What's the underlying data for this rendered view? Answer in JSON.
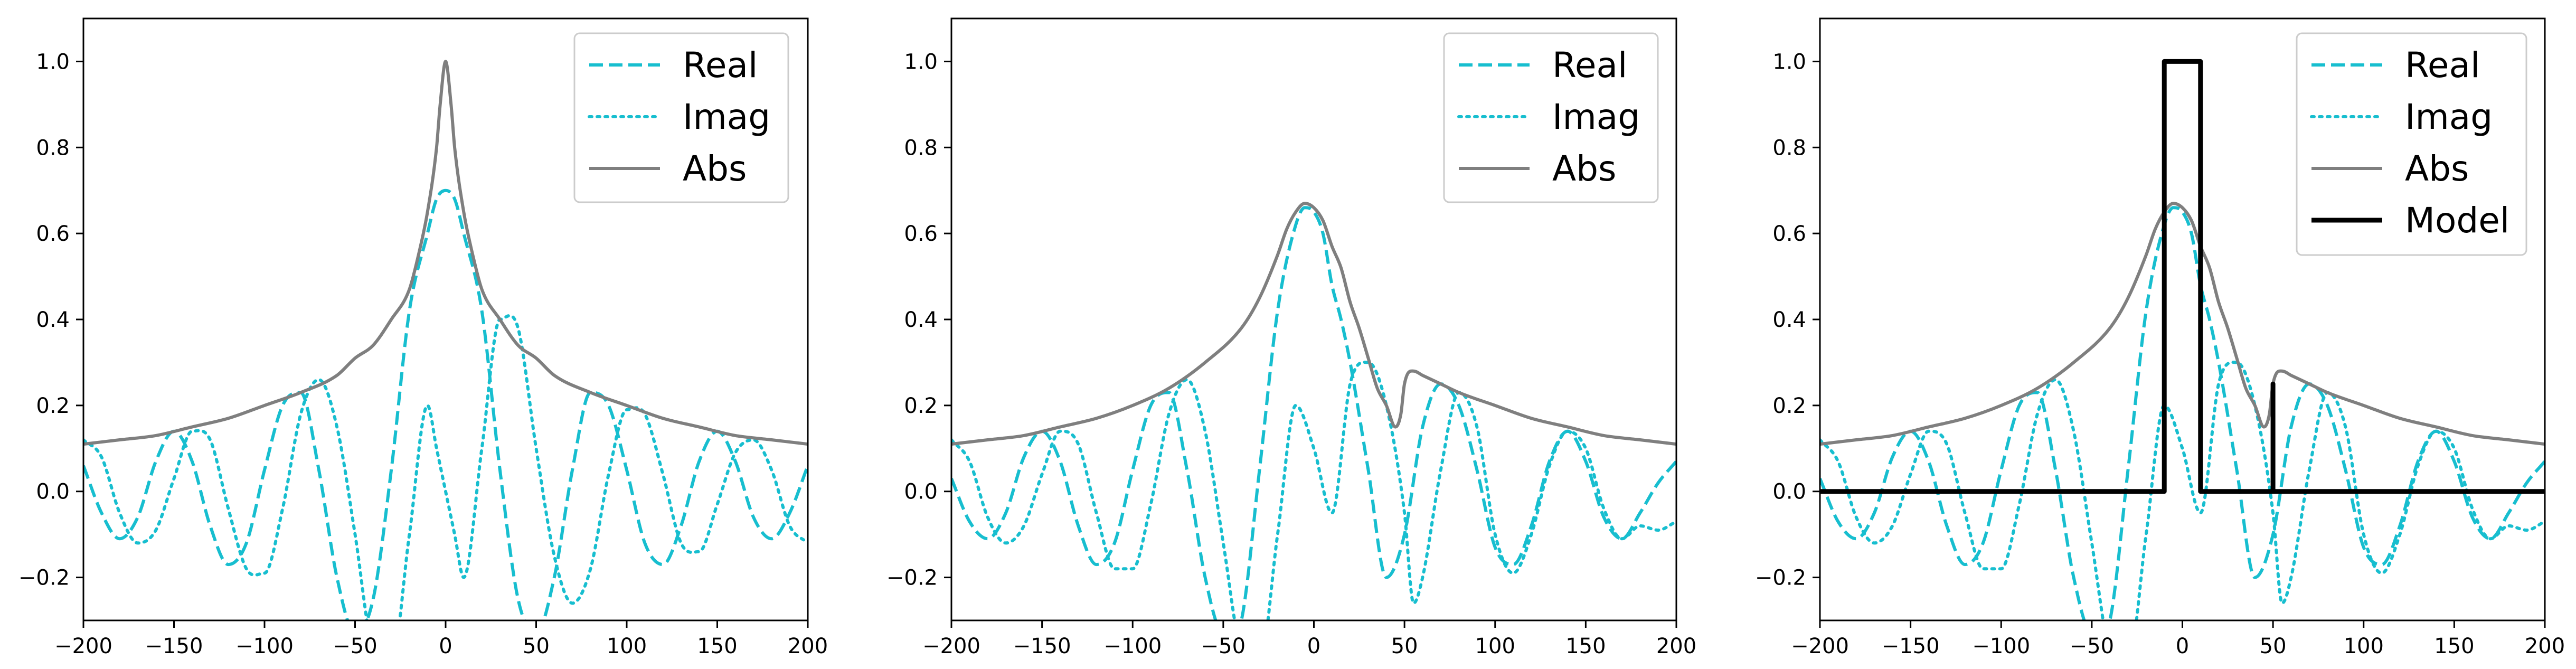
{
  "colors": {
    "real": "#17becf",
    "imag": "#17becf",
    "abs": "#7f7f7f",
    "model": "#000000"
  },
  "chart_data": [
    {
      "type": "line",
      "title": "",
      "xlabel": "",
      "ylabel": "",
      "xlim": [
        -200,
        200
      ],
      "ylim": [
        -0.3,
        1.1
      ],
      "xticks": [
        -200,
        -150,
        -100,
        -50,
        0,
        50,
        100,
        150,
        200
      ],
      "xtick_labels": [
        "−200",
        "−150",
        "−100",
        "−50",
        "0",
        "50",
        "100",
        "150",
        "200"
      ],
      "yticks": [
        -0.2,
        0.0,
        0.2,
        0.4,
        0.6,
        0.8,
        1.0
      ],
      "ytick_labels": [
        "−0.2",
        "0.0",
        "0.2",
        "0.4",
        "0.6",
        "0.8",
        "1.0"
      ],
      "grid": false,
      "legend": "top-right",
      "series": [
        {
          "name": "Real",
          "style": "dashed",
          "x": [
            -200,
            -190,
            -180,
            -170,
            -160,
            -150,
            -140,
            -130,
            -120,
            -110,
            -100,
            -90,
            -80,
            -70,
            -60,
            -50,
            -40,
            -30,
            -20,
            -10,
            -5,
            0,
            5,
            10,
            20,
            30,
            40,
            50,
            60,
            70,
            80,
            90,
            100,
            110,
            120,
            130,
            140,
            150,
            160,
            170,
            180,
            190,
            200
          ],
          "y": [
            0.06,
            -0.05,
            -0.11,
            -0.06,
            0.07,
            0.14,
            0.07,
            -0.08,
            -0.17,
            -0.12,
            0.05,
            0.2,
            0.23,
            0.05,
            -0.2,
            -0.33,
            -0.25,
            0.05,
            0.42,
            0.6,
            0.68,
            0.7,
            0.68,
            0.6,
            0.42,
            0.05,
            -0.25,
            -0.33,
            -0.2,
            0.05,
            0.23,
            0.2,
            0.05,
            -0.12,
            -0.17,
            -0.08,
            0.07,
            0.14,
            0.07,
            -0.06,
            -0.11,
            -0.05,
            0.06
          ]
        },
        {
          "name": "Imag",
          "style": "dotted",
          "x": [
            -200,
            -190,
            -180,
            -170,
            -160,
            -150,
            -140,
            -130,
            -120,
            -110,
            -100,
            -90,
            -80,
            -70,
            -60,
            -50,
            -40,
            -30,
            -20,
            -10,
            -5,
            0,
            5,
            10,
            20,
            30,
            40,
            50,
            60,
            70,
            80,
            90,
            100,
            110,
            120,
            130,
            140,
            150,
            160,
            170,
            180,
            190,
            200
          ],
          "y": [
            0.12,
            0.08,
            -0.05,
            -0.12,
            -0.09,
            0.03,
            0.14,
            0.12,
            -0.04,
            -0.18,
            -0.19,
            -0.04,
            0.18,
            0.26,
            0.15,
            -0.1,
            -0.38,
            -0.4,
            -0.1,
            0.2,
            0.1,
            0.0,
            -0.1,
            -0.2,
            0.1,
            0.4,
            0.38,
            0.1,
            -0.15,
            -0.26,
            -0.18,
            0.04,
            0.19,
            0.18,
            0.04,
            -0.12,
            -0.14,
            -0.03,
            0.09,
            0.12,
            0.05,
            -0.08,
            -0.12
          ]
        },
        {
          "name": "Abs",
          "style": "solid",
          "x": [
            -200,
            -180,
            -160,
            -140,
            -120,
            -100,
            -80,
            -60,
            -50,
            -40,
            -30,
            -20,
            -15,
            -10,
            -5,
            -3,
            0,
            3,
            5,
            10,
            15,
            20,
            30,
            40,
            50,
            60,
            80,
            100,
            120,
            140,
            160,
            180,
            200
          ],
          "y": [
            0.11,
            0.12,
            0.13,
            0.15,
            0.17,
            0.2,
            0.23,
            0.27,
            0.31,
            0.34,
            0.4,
            0.47,
            0.55,
            0.65,
            0.8,
            0.9,
            1.0,
            0.9,
            0.8,
            0.65,
            0.55,
            0.47,
            0.4,
            0.34,
            0.31,
            0.27,
            0.23,
            0.2,
            0.17,
            0.15,
            0.13,
            0.12,
            0.11
          ]
        }
      ]
    },
    {
      "type": "line",
      "title": "",
      "xlabel": "",
      "ylabel": "",
      "xlim": [
        -200,
        200
      ],
      "ylim": [
        -0.3,
        1.1
      ],
      "xticks": [
        -200,
        -150,
        -100,
        -50,
        0,
        50,
        100,
        150,
        200
      ],
      "xtick_labels": [
        "−200",
        "−150",
        "−100",
        "−50",
        "0",
        "50",
        "100",
        "150",
        "200"
      ],
      "yticks": [
        -0.2,
        0.0,
        0.2,
        0.4,
        0.6,
        0.8,
        1.0
      ],
      "ytick_labels": [
        "−0.2",
        "0.0",
        "0.2",
        "0.4",
        "0.6",
        "0.8",
        "1.0"
      ],
      "grid": false,
      "legend": "top-right",
      "series": [
        {
          "name": "Real",
          "style": "dashed",
          "x": [
            -200,
            -190,
            -180,
            -170,
            -160,
            -150,
            -140,
            -130,
            -120,
            -110,
            -100,
            -90,
            -80,
            -70,
            -60,
            -50,
            -40,
            -30,
            -20,
            -10,
            -5,
            0,
            5,
            10,
            15,
            20,
            30,
            40,
            50,
            60,
            70,
            80,
            90,
            100,
            110,
            120,
            130,
            140,
            150,
            160,
            170,
            180,
            190,
            200
          ],
          "y": [
            0.03,
            -0.07,
            -0.11,
            -0.05,
            0.08,
            0.14,
            0.07,
            -0.08,
            -0.17,
            -0.12,
            0.05,
            0.2,
            0.23,
            0.05,
            -0.2,
            -0.33,
            -0.3,
            0.05,
            0.42,
            0.62,
            0.66,
            0.65,
            0.6,
            0.48,
            0.4,
            0.3,
            0.05,
            -0.2,
            -0.1,
            0.15,
            0.25,
            0.2,
            0.05,
            -0.13,
            -0.17,
            -0.08,
            0.07,
            0.14,
            0.07,
            -0.06,
            -0.11,
            -0.05,
            0.02,
            0.07
          ]
        },
        {
          "name": "Imag",
          "style": "dotted",
          "x": [
            -200,
            -190,
            -180,
            -170,
            -160,
            -150,
            -140,
            -130,
            -120,
            -110,
            -100,
            -90,
            -80,
            -70,
            -60,
            -50,
            -40,
            -30,
            -20,
            -10,
            0,
            10,
            20,
            30,
            40,
            50,
            55,
            60,
            70,
            80,
            90,
            100,
            110,
            120,
            130,
            140,
            150,
            160,
            170,
            180,
            190,
            200
          ],
          "y": [
            0.12,
            0.07,
            -0.06,
            -0.12,
            -0.08,
            0.04,
            0.14,
            0.11,
            -0.05,
            -0.18,
            -0.18,
            -0.03,
            0.18,
            0.26,
            0.14,
            -0.12,
            -0.38,
            -0.4,
            -0.1,
            0.2,
            0.1,
            -0.05,
            0.25,
            0.3,
            0.2,
            -0.05,
            -0.26,
            -0.2,
            0.05,
            0.23,
            0.15,
            -0.1,
            -0.19,
            -0.1,
            0.06,
            0.14,
            0.1,
            -0.04,
            -0.11,
            -0.08,
            -0.09,
            -0.07
          ]
        },
        {
          "name": "Abs",
          "style": "solid",
          "x": [
            -200,
            -180,
            -160,
            -140,
            -120,
            -100,
            -80,
            -60,
            -40,
            -30,
            -20,
            -15,
            -10,
            -5,
            0,
            5,
            10,
            15,
            20,
            25,
            30,
            35,
            40,
            45,
            48,
            50,
            55,
            60,
            70,
            80,
            100,
            120,
            140,
            160,
            180,
            200
          ],
          "y": [
            0.11,
            0.12,
            0.13,
            0.15,
            0.17,
            0.2,
            0.24,
            0.3,
            0.38,
            0.45,
            0.55,
            0.61,
            0.65,
            0.67,
            0.66,
            0.63,
            0.57,
            0.52,
            0.44,
            0.38,
            0.31,
            0.24,
            0.2,
            0.15,
            0.18,
            0.25,
            0.28,
            0.27,
            0.25,
            0.23,
            0.2,
            0.17,
            0.15,
            0.13,
            0.12,
            0.11
          ]
        }
      ]
    },
    {
      "type": "line",
      "title": "",
      "xlabel": "",
      "ylabel": "",
      "xlim": [
        -200,
        200
      ],
      "ylim": [
        -0.3,
        1.1
      ],
      "xticks": [
        -200,
        -150,
        -100,
        -50,
        0,
        50,
        100,
        150,
        200
      ],
      "xtick_labels": [
        "−200",
        "−150",
        "−100",
        "−50",
        "0",
        "50",
        "100",
        "150",
        "200"
      ],
      "yticks": [
        -0.2,
        0.0,
        0.2,
        0.4,
        0.6,
        0.8,
        1.0
      ],
      "ytick_labels": [
        "−0.2",
        "0.0",
        "0.2",
        "0.4",
        "0.6",
        "0.8",
        "1.0"
      ],
      "grid": false,
      "legend": "top-right",
      "series": [
        {
          "name": "Real",
          "style": "dashed",
          "x": [
            -200,
            -190,
            -180,
            -170,
            -160,
            -150,
            -140,
            -130,
            -120,
            -110,
            -100,
            -90,
            -80,
            -70,
            -60,
            -50,
            -40,
            -30,
            -20,
            -10,
            -5,
            0,
            5,
            10,
            15,
            20,
            30,
            40,
            50,
            60,
            70,
            80,
            90,
            100,
            110,
            120,
            130,
            140,
            150,
            160,
            170,
            180,
            190,
            200
          ],
          "y": [
            0.03,
            -0.07,
            -0.11,
            -0.05,
            0.08,
            0.14,
            0.07,
            -0.08,
            -0.17,
            -0.12,
            0.05,
            0.2,
            0.23,
            0.05,
            -0.2,
            -0.33,
            -0.3,
            0.05,
            0.42,
            0.62,
            0.66,
            0.65,
            0.6,
            0.48,
            0.4,
            0.3,
            0.05,
            -0.2,
            -0.1,
            0.15,
            0.25,
            0.2,
            0.05,
            -0.13,
            -0.17,
            -0.08,
            0.07,
            0.14,
            0.07,
            -0.06,
            -0.11,
            -0.05,
            0.02,
            0.07
          ]
        },
        {
          "name": "Imag",
          "style": "dotted",
          "x": [
            -200,
            -190,
            -180,
            -170,
            -160,
            -150,
            -140,
            -130,
            -120,
            -110,
            -100,
            -90,
            -80,
            -70,
            -60,
            -50,
            -40,
            -30,
            -20,
            -10,
            0,
            10,
            20,
            30,
            40,
            50,
            55,
            60,
            70,
            80,
            90,
            100,
            110,
            120,
            130,
            140,
            150,
            160,
            170,
            180,
            190,
            200
          ],
          "y": [
            0.12,
            0.07,
            -0.06,
            -0.12,
            -0.08,
            0.04,
            0.14,
            0.11,
            -0.05,
            -0.18,
            -0.18,
            -0.03,
            0.18,
            0.26,
            0.14,
            -0.12,
            -0.38,
            -0.4,
            -0.1,
            0.2,
            0.1,
            -0.05,
            0.25,
            0.3,
            0.2,
            -0.05,
            -0.26,
            -0.2,
            0.05,
            0.23,
            0.15,
            -0.1,
            -0.19,
            -0.1,
            0.06,
            0.14,
            0.1,
            -0.04,
            -0.11,
            -0.08,
            -0.09,
            -0.07
          ]
        },
        {
          "name": "Abs",
          "style": "solid",
          "x": [
            -200,
            -180,
            -160,
            -140,
            -120,
            -100,
            -80,
            -60,
            -40,
            -30,
            -20,
            -15,
            -10,
            -5,
            0,
            5,
            10,
            15,
            20,
            25,
            30,
            35,
            40,
            45,
            48,
            50,
            55,
            60,
            70,
            80,
            100,
            120,
            140,
            160,
            180,
            200
          ],
          "y": [
            0.11,
            0.12,
            0.13,
            0.15,
            0.17,
            0.2,
            0.24,
            0.3,
            0.38,
            0.45,
            0.55,
            0.61,
            0.65,
            0.67,
            0.66,
            0.63,
            0.57,
            0.52,
            0.44,
            0.38,
            0.31,
            0.24,
            0.2,
            0.15,
            0.18,
            0.25,
            0.28,
            0.27,
            0.25,
            0.23,
            0.2,
            0.17,
            0.15,
            0.13,
            0.12,
            0.11
          ]
        },
        {
          "name": "Model",
          "style": "solid-thick",
          "x": [
            -200,
            -10,
            -10,
            10,
            10,
            50,
            50,
            50,
            200
          ],
          "y": [
            0.0,
            0.0,
            1.0,
            1.0,
            0.0,
            0.0,
            0.25,
            0.0,
            0.0
          ]
        }
      ]
    }
  ]
}
